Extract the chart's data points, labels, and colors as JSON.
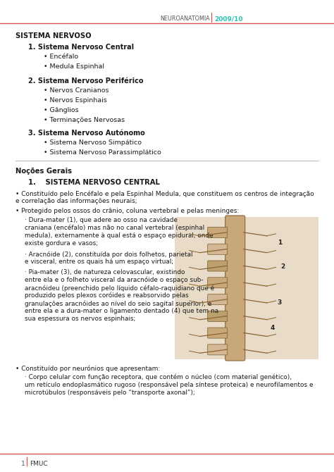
{
  "bg_color": "#ffffff",
  "header_text": "NEUROANATOMIA",
  "header_year": "2009/10",
  "header_color": "#2ec4b6",
  "header_line_color": "#d9534f",
  "text_color": "#1a1a1a",
  "section_title": "SISTEMA NERVOSO",
  "sub1_title": "1. Sistema Nervoso Central",
  "sub1_items": [
    "Encéfalo",
    "Medula Espinhal"
  ],
  "sub2_title": "2. Sistema Nervoso Periférico",
  "sub2_items": [
    "Nervos Cranianos",
    "Nervos Espinhais",
    "Gânglios",
    "Terminações Nervosas"
  ],
  "sub3_title": "3. Sistema Nervoso Autónomo",
  "sub3_items": [
    "Sistema Nervoso Simpático",
    "Sistema Nervoso Parassimplático"
  ],
  "nocoes_title": "Noções Gerais",
  "snc_heading": "1.  SISTEMA NERVOSO CENTRAL",
  "p1": "• Constituído pelo Encéfalo e pela Espinhal Medula, que constituem os centros de integração",
  "p1b": "e correlação das informações neurais;",
  "p2": "• Protegido pelos ossos do crânio, coluna vertebral e pelas meninges:",
  "dura_lines": [
    "· Dura-mater (1), que adere ao osso na cavidade",
    "craniana (encéfalo) mas não no canal vertebral (espinhal",
    "medula), externamente à qual está o espaço epidural, onde",
    "existe gordura e vasos;"
  ],
  "arac_lines": [
    "· Aracnóide (2), constituída por dois folhetos, parietal",
    "e visceral, entre os quais há um espaço virtual;"
  ],
  "pia_lines": [
    "· Pia-mater (3), de natureza celovascular, existindo",
    "entre ela e o folheto visceral da aracnóide o espaço sub-",
    "aracnóideu (preenchido pelo líquido céfalo-raquidiano que é",
    "produzido pelos plexos coróides e reabsorvido pelas",
    "granulações aracnóides ao nível do seio sagital superior), e",
    "entre ela e a dura-mater o ligamento dentado (4) que tem na",
    "sua espessura os nervos espinhais;"
  ],
  "p3": "• Constituído por neurónios que apresentam:",
  "corpo_lines": [
    "· Corpo celular com função receptora, que contém o núcleo (com material genético),",
    "um retículo endoplasmático rugoso (responsável pela síntese proteica) e neurofilamentos e",
    "microtúbulos (responsáveis pelo “transporte axonal”);"
  ],
  "footer_page": "1",
  "footer_inst": "FMUC"
}
